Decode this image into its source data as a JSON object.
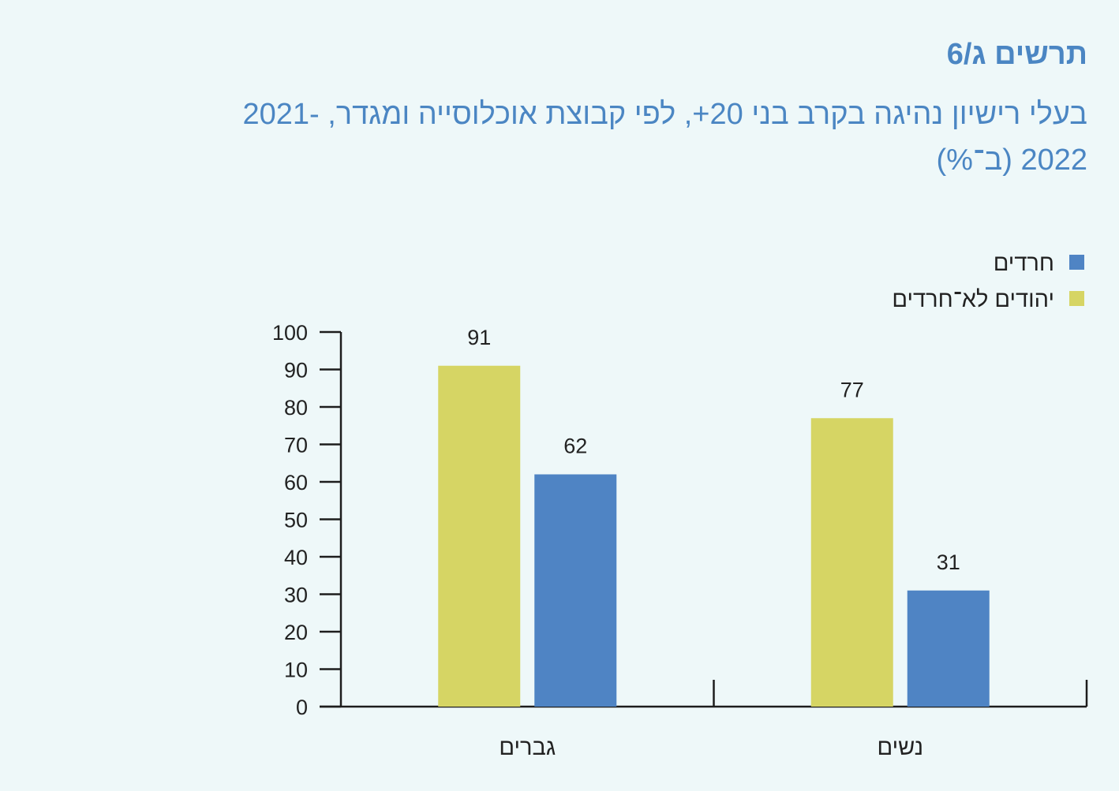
{
  "chart_number": "תרשים ג/6",
  "chart_data": {
    "type": "bar",
    "title": "בעלי רישיון נהיגה בקרב בני 20+, לפי קבוצת אוכלוסייה ומגדר, 2021-2022 (ב־%)",
    "categories": [
      "גברים",
      "נשים"
    ],
    "series": [
      {
        "name": "יהודים לא־חרדים",
        "values": [
          91,
          77
        ],
        "color": "#d6d564"
      },
      {
        "name": "חרדים",
        "values": [
          62,
          31
        ],
        "color": "#4f84c4"
      }
    ],
    "ylim": [
      0,
      100
    ],
    "yticks": [
      0,
      10,
      20,
      30,
      40,
      50,
      60,
      70,
      80,
      90,
      100
    ],
    "xlabel": "",
    "ylabel": "",
    "grid": false,
    "legend_position": "top-right",
    "legend_order": [
      "חרדים",
      "יהודים לא־חרדים"
    ]
  }
}
